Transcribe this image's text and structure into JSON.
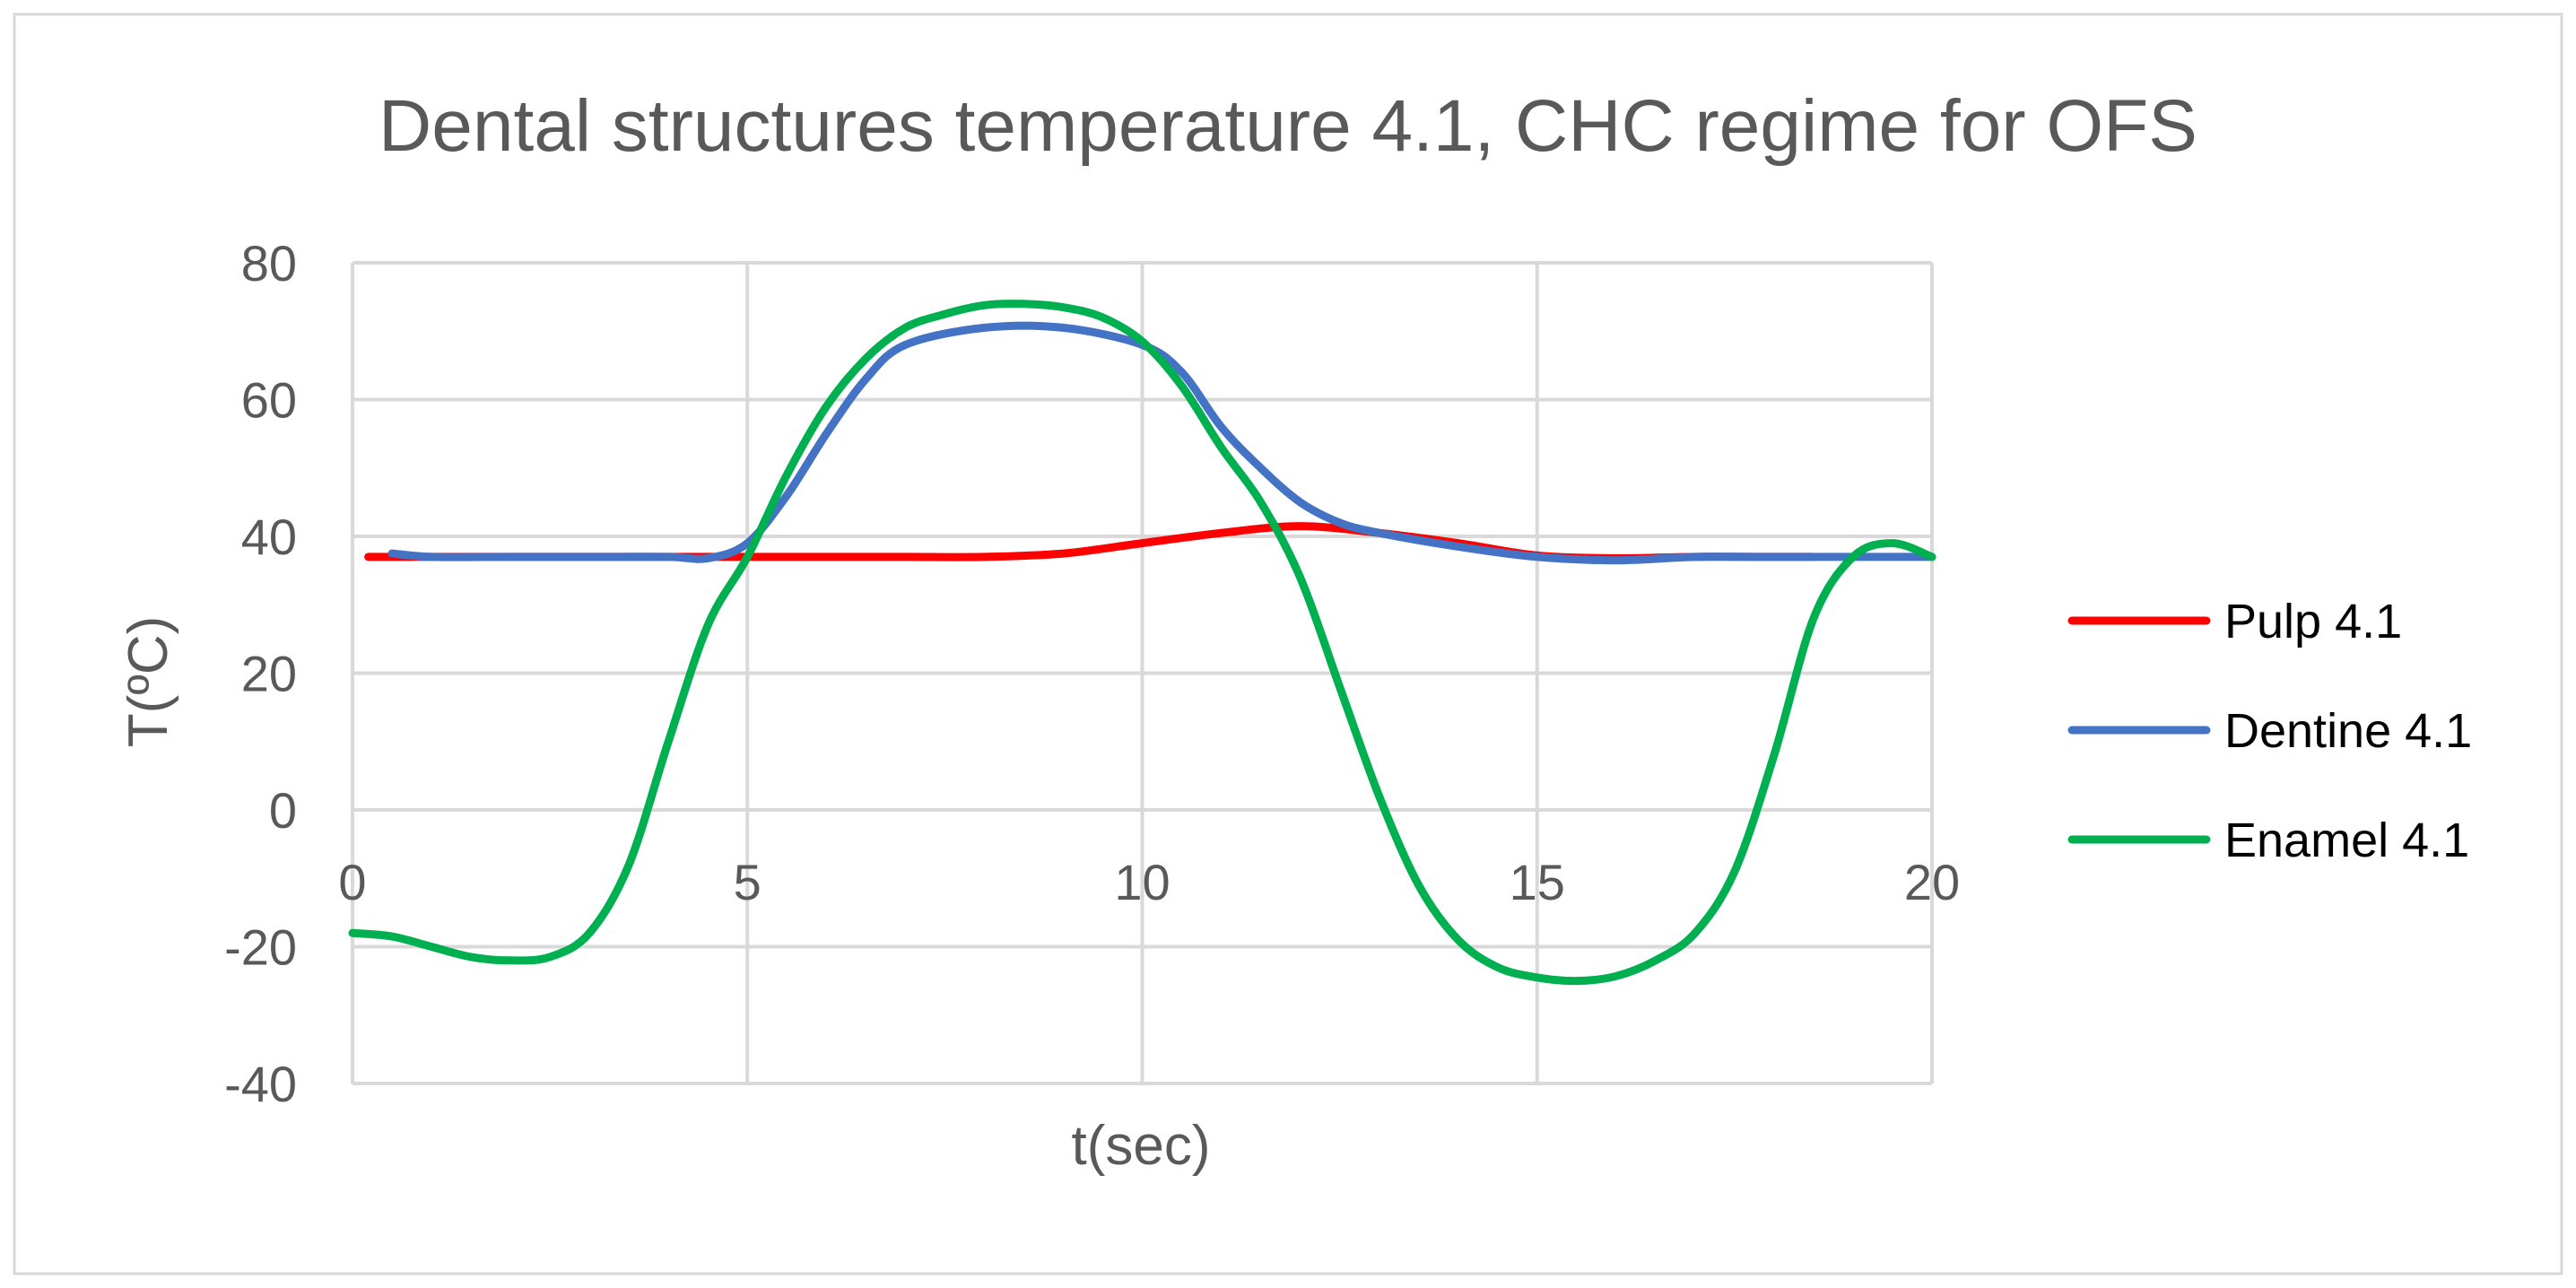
{
  "chart_data": {
    "type": "line",
    "title": "Dental structures temperature 4.1, CHC regime for OFS",
    "xlabel": "t(sec)",
    "ylabel": "T(ºC)",
    "xlim": [
      0,
      20
    ],
    "ylim": [
      -40,
      80
    ],
    "x_ticks": [
      "0",
      "5",
      "10",
      "15",
      "20"
    ],
    "y_ticks": [
      "80",
      "60",
      "40",
      "20",
      "0",
      "-20",
      "-40"
    ],
    "grid": true,
    "legend_position": "right",
    "series": [
      {
        "name": "Pulp 4.1",
        "color": "#ff0000",
        "x": [
          0.2,
          1,
          2,
          3,
          4,
          5,
          6,
          7,
          8,
          9,
          10,
          11,
          12,
          13,
          14,
          15,
          16,
          17,
          18,
          18.5
        ],
        "y": [
          37,
          37,
          37,
          37,
          37,
          37,
          37,
          37,
          37,
          37.5,
          39,
          40.5,
          41.5,
          40.5,
          39,
          37.2,
          36.8,
          37,
          37,
          37
        ]
      },
      {
        "name": "Dentine 4.1",
        "color": "#4472c4",
        "x": [
          0.5,
          1,
          2,
          3,
          4,
          4.5,
          5,
          5.5,
          6,
          6.5,
          7,
          8,
          9,
          10,
          10.5,
          11,
          11.5,
          12,
          12.5,
          13,
          14,
          15,
          16,
          17,
          18,
          19,
          20
        ],
        "y": [
          37.5,
          37,
          37,
          37,
          37,
          36.8,
          39,
          46,
          55,
          63,
          68,
          70.5,
          70.5,
          68,
          64,
          56,
          50,
          45,
          42,
          40.5,
          38.5,
          37,
          36.5,
          37,
          37,
          37,
          37
        ]
      },
      {
        "name": "Enamel 4.1",
        "color": "#00b050",
        "x": [
          0,
          0.5,
          1,
          1.5,
          2,
          2.5,
          3,
          3.5,
          4,
          4.5,
          5,
          5.5,
          6,
          6.5,
          7,
          7.5,
          8,
          8.5,
          9,
          9.5,
          10,
          10.5,
          11,
          11.5,
          12,
          12.5,
          13,
          13.5,
          14,
          14.5,
          15,
          15.5,
          16,
          16.5,
          17,
          17.5,
          18,
          18.5,
          19,
          19.5,
          20
        ],
        "y": [
          -18,
          -18.5,
          -20,
          -21.5,
          -22,
          -21.5,
          -18,
          -8,
          10,
          27,
          37,
          49,
          59,
          66,
          70.5,
          72.5,
          73.8,
          74,
          73.5,
          72,
          68.5,
          62,
          53,
          45,
          34,
          18,
          2,
          -11,
          -19,
          -23,
          -24.5,
          -25,
          -24.3,
          -22,
          -18,
          -9,
          8,
          28,
          37,
          39,
          37
        ]
      }
    ]
  }
}
